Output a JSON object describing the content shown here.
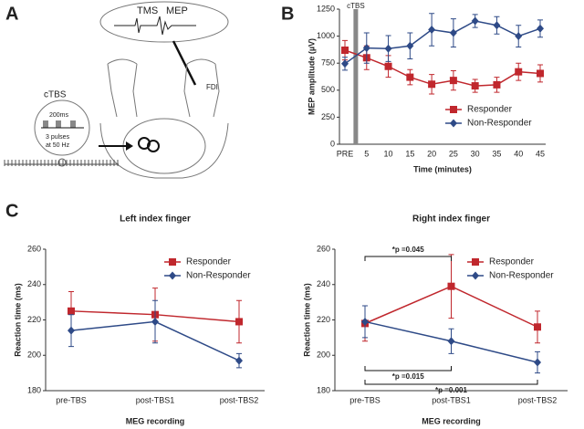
{
  "panel_labels": [
    "A",
    "B",
    "C"
  ],
  "illustration": {
    "stimulus": "TMS",
    "response": "MEP",
    "muscle": "FDI",
    "protocol": "cTBS",
    "interval": "200ms",
    "pulses": "3 pulses",
    "frequency": "at 50 Hz"
  },
  "chart_data": [
    {
      "type": "line",
      "categories": [
        "PRE",
        "5",
        "10",
        "15",
        "20",
        "25",
        "30",
        "35",
        "40",
        "45"
      ],
      "x_label": "Time (minutes)",
      "y_label": "MEP amplitude (µV)",
      "band_label": "cTBS",
      "ylim": [
        0,
        1250
      ],
      "yticks": [
        0,
        250,
        500,
        750,
        1000,
        1250
      ],
      "legend": "lower right",
      "series": [
        {
          "name": "Responder",
          "color": "#c0272d",
          "marker": "square",
          "values": [
            870,
            800,
            720,
            620,
            555,
            590,
            540,
            550,
            670,
            655
          ],
          "errors": [
            90,
            110,
            100,
            70,
            90,
            90,
            60,
            70,
            80,
            80
          ]
        },
        {
          "name": "Non-Responder",
          "color": "#2e4a87",
          "marker": "diamond",
          "values": [
            745,
            890,
            885,
            910,
            1060,
            1030,
            1140,
            1100,
            1000,
            1070
          ],
          "errors": [
            60,
            140,
            120,
            120,
            150,
            130,
            60,
            80,
            100,
            80
          ]
        }
      ]
    },
    {
      "type": "line",
      "title": "Left index finger",
      "categories": [
        "pre-TBS",
        "post-TBS1",
        "post-TBS2"
      ],
      "x_label": "MEG recording",
      "y_label": "Reaction time (ms)",
      "ylim": [
        180,
        260
      ],
      "yticks": [
        180,
        200,
        220,
        240,
        260
      ],
      "legend": "upper right",
      "series": [
        {
          "name": "Responder",
          "color": "#c0272d",
          "marker": "square",
          "values": [
            225,
            223,
            219
          ],
          "errors": [
            11,
            15,
            12
          ]
        },
        {
          "name": "Non-Responder",
          "color": "#2e4a87",
          "marker": "diamond",
          "values": [
            214,
            219,
            197
          ],
          "errors": [
            9,
            12,
            4
          ]
        }
      ]
    },
    {
      "type": "line",
      "title": "Right index finger",
      "categories": [
        "pre-TBS",
        "post-TBS1",
        "post-TBS2"
      ],
      "x_label": "MEG recording",
      "y_label": "Reaction time (ms)",
      "ylim": [
        180,
        260
      ],
      "yticks": [
        180,
        200,
        220,
        240,
        260
      ],
      "legend": "upper right",
      "annotations": [
        "*p =0.045",
        "*p =0.015",
        "*p =0.001"
      ],
      "series": [
        {
          "name": "Responder",
          "color": "#c0272d",
          "marker": "square",
          "values": [
            218,
            239,
            216
          ],
          "errors": [
            10,
            18,
            9
          ]
        },
        {
          "name": "Non-Responder",
          "color": "#2e4a87",
          "marker": "diamond",
          "values": [
            219,
            208,
            196
          ],
          "errors": [
            9,
            7,
            6
          ]
        }
      ]
    }
  ]
}
